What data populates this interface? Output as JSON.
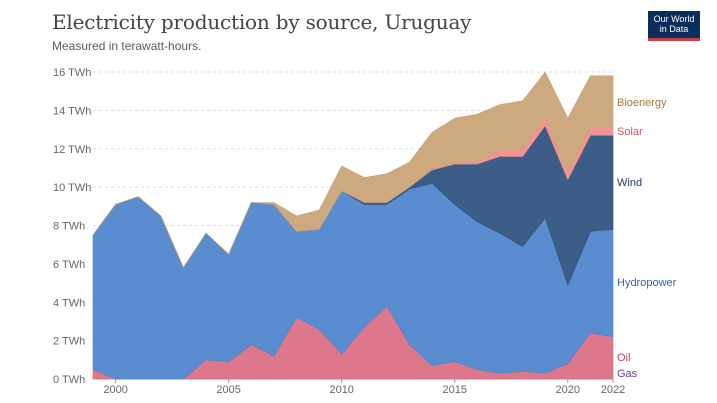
{
  "header": {
    "title": "Electricity production by source, Uruguay",
    "subtitle": "Measured in terawatt-hours.",
    "logo_line1": "Our World",
    "logo_line2": "in Data"
  },
  "chart_data": {
    "type": "area",
    "stacked": true,
    "x": [
      1999,
      2000,
      2001,
      2002,
      2003,
      2004,
      2005,
      2006,
      2007,
      2008,
      2009,
      2010,
      2011,
      2012,
      2013,
      2014,
      2015,
      2016,
      2017,
      2018,
      2019,
      2020,
      2021,
      2022
    ],
    "series": [
      {
        "name": "Gas",
        "color": "#6d3e91",
        "values": [
          0,
          0,
          0,
          0,
          0,
          0,
          0,
          0,
          0,
          0,
          0,
          0,
          0,
          0,
          0,
          0,
          0,
          0,
          0,
          0,
          0,
          0,
          0,
          0
        ]
      },
      {
        "name": "Oil",
        "color": "#d96b82",
        "values": [
          0.5,
          0.0,
          0.0,
          0.0,
          0.0,
          1.0,
          0.9,
          1.8,
          1.2,
          3.2,
          2.6,
          1.3,
          2.7,
          3.8,
          1.8,
          0.7,
          0.9,
          0.5,
          0.3,
          0.4,
          0.3,
          0.8,
          2.4,
          2.2
        ]
      },
      {
        "name": "Hydropower",
        "color": "#4c82cc",
        "values": [
          7.0,
          9.1,
          9.5,
          8.5,
          5.8,
          6.6,
          5.6,
          7.4,
          7.9,
          4.5,
          5.2,
          8.5,
          6.4,
          5.3,
          8.1,
          9.5,
          8.2,
          7.7,
          7.3,
          6.5,
          8.1,
          4.1,
          5.3,
          5.6
        ]
      },
      {
        "name": "Wind",
        "color": "#2c4f7f",
        "values": [
          0,
          0,
          0,
          0,
          0,
          0,
          0,
          0,
          0,
          0,
          0,
          0,
          0.1,
          0.1,
          0.1,
          0.7,
          2.1,
          3.0,
          4.0,
          4.7,
          4.8,
          5.5,
          5.0,
          4.9
        ]
      },
      {
        "name": "Solar",
        "color": "#f28b8b",
        "values": [
          0,
          0,
          0,
          0,
          0,
          0,
          0,
          0,
          0,
          0,
          0,
          0,
          0,
          0,
          0,
          0.05,
          0.1,
          0.1,
          0.3,
          0.4,
          0.4,
          0.4,
          0.4,
          0.4
        ]
      },
      {
        "name": "Bioenergy",
        "color": "#c9a274",
        "values": [
          0,
          0,
          0,
          0,
          0,
          0,
          0,
          0,
          0.1,
          0.8,
          1.0,
          1.3,
          1.3,
          1.5,
          1.3,
          1.9,
          2.3,
          2.5,
          2.4,
          2.5,
          2.4,
          2.8,
          2.7,
          2.7
        ]
      }
    ],
    "legend_order": [
      "Bioenergy",
      "Solar",
      "Wind",
      "Hydropower",
      "Oil",
      "Gas"
    ],
    "x_ticks": [
      "2000",
      "2005",
      "2010",
      "2015",
      "2020",
      "2022"
    ],
    "y_ticks": [
      "0 TWh",
      "2 TWh",
      "4 TWh",
      "6 TWh",
      "8 TWh",
      "10 TWh",
      "12 TWh",
      "14 TWh",
      "16 TWh"
    ],
    "xlim": [
      1999,
      2022
    ],
    "ylim": [
      0,
      16
    ],
    "grid": "horizontal-dashed",
    "legend": "right"
  }
}
